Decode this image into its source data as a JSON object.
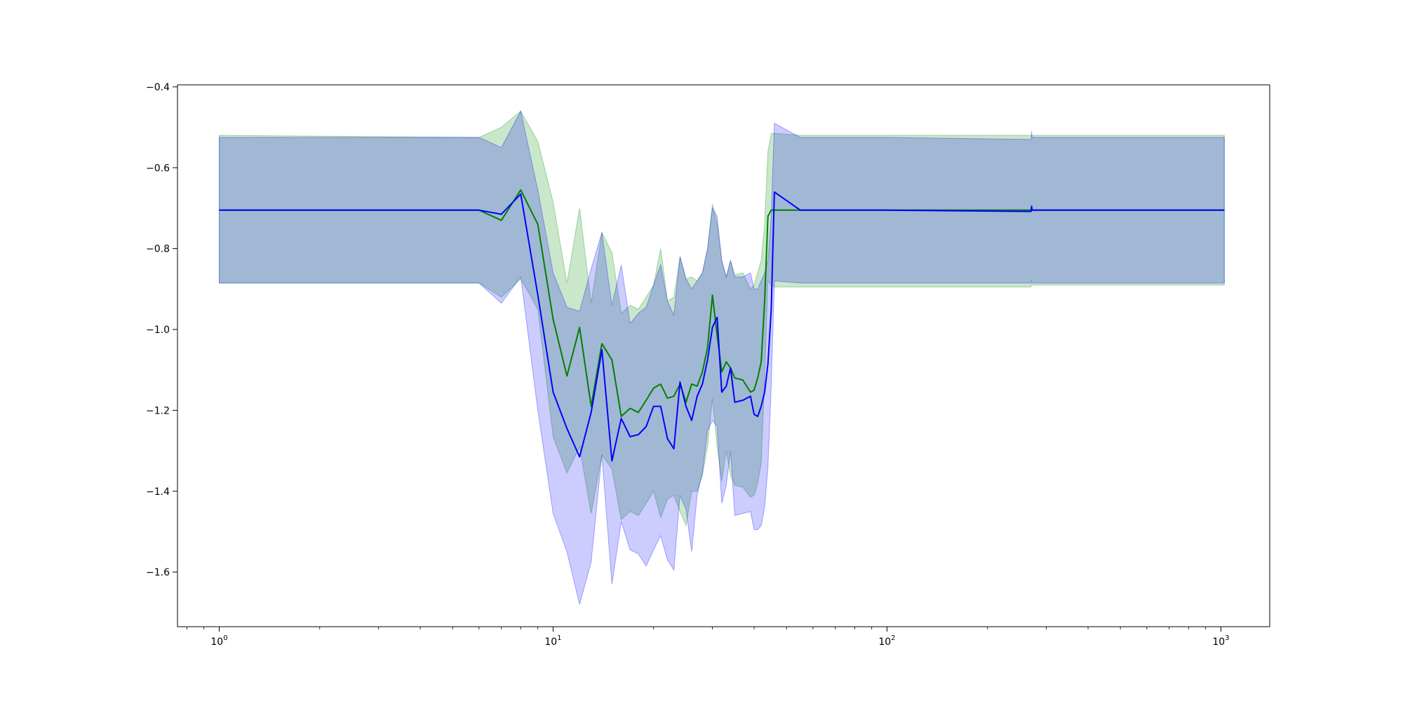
{
  "chart_data": {
    "type": "line",
    "title": "",
    "xlabel": "",
    "ylabel": "",
    "x_scale": "log",
    "xlim": [
      0.75,
      1400
    ],
    "ylim": [
      -1.735,
      -0.395
    ],
    "grid": false,
    "legend": "none",
    "x_ticks": [
      {
        "value": 1,
        "base": "10",
        "exp": "0"
      },
      {
        "value": 10,
        "base": "10",
        "exp": "1"
      },
      {
        "value": 100,
        "base": "10",
        "exp": "2"
      },
      {
        "value": 1000,
        "base": "10",
        "exp": "3"
      }
    ],
    "y_ticks": [
      {
        "value": -0.4,
        "label": "−0.4"
      },
      {
        "value": -0.6,
        "label": "−0.6"
      },
      {
        "value": -0.8,
        "label": "−0.8"
      },
      {
        "value": -1.0,
        "label": "−1.0"
      },
      {
        "value": -1.2,
        "label": "−1.2"
      },
      {
        "value": -1.4,
        "label": "−1.4"
      },
      {
        "value": -1.6,
        "label": "−1.6"
      }
    ],
    "x": [
      1,
      6,
      7,
      8,
      9,
      10,
      11,
      12,
      13,
      14,
      15,
      16,
      17,
      18,
      19,
      20,
      21,
      22,
      23,
      24,
      25,
      26,
      27,
      28,
      29,
      30,
      31,
      32,
      33,
      34,
      35,
      37,
      39,
      40,
      41,
      42,
      43,
      44,
      45,
      46,
      55,
      100,
      270,
      271,
      272,
      1024
    ],
    "series": [
      {
        "color": "#008000",
        "band_color": "#2ca02c",
        "band_opacity": 0.25,
        "values": [
          -0.705,
          -0.705,
          -0.73,
          -0.655,
          -0.74,
          -0.975,
          -1.115,
          -0.995,
          -1.19,
          -1.035,
          -1.075,
          -1.215,
          -1.195,
          -1.205,
          -1.175,
          -1.145,
          -1.135,
          -1.17,
          -1.165,
          -1.135,
          -1.18,
          -1.135,
          -1.14,
          -1.105,
          -1.045,
          -0.915,
          -1.015,
          -1.105,
          -1.08,
          -1.095,
          -1.12,
          -1.125,
          -1.155,
          -1.15,
          -1.12,
          -1.08,
          -0.93,
          -0.72,
          -0.705,
          -0.705,
          -0.705,
          -0.705,
          -0.705,
          -0.705,
          -0.705,
          -0.705
        ],
        "upper": [
          -0.52,
          -0.525,
          -0.5,
          -0.46,
          -0.535,
          -0.685,
          -0.885,
          -0.7,
          -0.935,
          -0.76,
          -0.81,
          -0.96,
          -0.94,
          -0.95,
          -0.92,
          -0.89,
          -0.8,
          -0.93,
          -0.92,
          -0.82,
          -0.875,
          -0.87,
          -0.88,
          -0.86,
          -0.8,
          -0.69,
          -0.74,
          -0.83,
          -0.87,
          -0.83,
          -0.865,
          -0.86,
          -0.9,
          -0.89,
          -0.86,
          -0.83,
          -0.74,
          -0.56,
          -0.515,
          -0.515,
          -0.52,
          -0.52,
          -0.52,
          -0.52,
          -0.52,
          -0.52
        ],
        "lower": [
          -0.885,
          -0.885,
          -0.92,
          -0.875,
          -0.95,
          -1.265,
          -1.355,
          -1.29,
          -1.455,
          -1.31,
          -1.345,
          -1.47,
          -1.45,
          -1.46,
          -1.43,
          -1.4,
          -1.465,
          -1.42,
          -1.41,
          -1.45,
          -1.485,
          -1.4,
          -1.4,
          -1.36,
          -1.29,
          -1.17,
          -1.29,
          -1.375,
          -1.3,
          -1.36,
          -1.385,
          -1.39,
          -1.415,
          -1.41,
          -1.38,
          -1.33,
          -1.12,
          -0.88,
          -0.89,
          -0.895,
          -0.895,
          -0.895,
          -0.895,
          -0.89,
          -0.89,
          -0.89
        ]
      },
      {
        "color": "#0000ff",
        "band_color": "#0000ff",
        "band_opacity": 0.2,
        "values": [
          -0.705,
          -0.705,
          -0.715,
          -0.665,
          -0.915,
          -1.155,
          -1.245,
          -1.315,
          -1.205,
          -1.05,
          -1.325,
          -1.22,
          -1.265,
          -1.26,
          -1.24,
          -1.19,
          -1.19,
          -1.27,
          -1.295,
          -1.13,
          -1.19,
          -1.225,
          -1.165,
          -1.135,
          -1.075,
          -0.995,
          -0.97,
          -1.155,
          -1.14,
          -1.095,
          -1.18,
          -1.175,
          -1.165,
          -1.21,
          -1.215,
          -1.19,
          -1.155,
          -1.085,
          -0.95,
          -0.66,
          -0.705,
          -0.705,
          -0.708,
          -0.695,
          -0.705,
          -0.705
        ],
        "upper": [
          -0.525,
          -0.525,
          -0.55,
          -0.46,
          -0.655,
          -0.86,
          -0.945,
          -0.955,
          -0.85,
          -0.76,
          -0.94,
          -0.84,
          -0.985,
          -0.96,
          -0.945,
          -0.89,
          -0.84,
          -0.93,
          -0.965,
          -0.82,
          -0.875,
          -0.9,
          -0.88,
          -0.86,
          -0.8,
          -0.7,
          -0.72,
          -0.83,
          -0.87,
          -0.83,
          -0.87,
          -0.87,
          -0.86,
          -0.9,
          -0.9,
          -0.88,
          -0.86,
          -0.83,
          -0.72,
          -0.49,
          -0.525,
          -0.525,
          -0.53,
          -0.51,
          -0.525,
          -0.525
        ],
        "lower": [
          -0.885,
          -0.885,
          -0.935,
          -0.87,
          -1.2,
          -1.455,
          -1.55,
          -1.68,
          -1.575,
          -1.31,
          -1.63,
          -1.475,
          -1.545,
          -1.555,
          -1.585,
          -1.545,
          -1.51,
          -1.57,
          -1.595,
          -1.41,
          -1.445,
          -1.55,
          -1.41,
          -1.355,
          -1.25,
          -1.225,
          -1.24,
          -1.43,
          -1.385,
          -1.3,
          -1.46,
          -1.455,
          -1.45,
          -1.495,
          -1.495,
          -1.485,
          -1.44,
          -1.34,
          -1.14,
          -0.88,
          -0.885,
          -0.885,
          -0.885,
          -0.88,
          -0.885,
          -0.885
        ]
      }
    ]
  }
}
